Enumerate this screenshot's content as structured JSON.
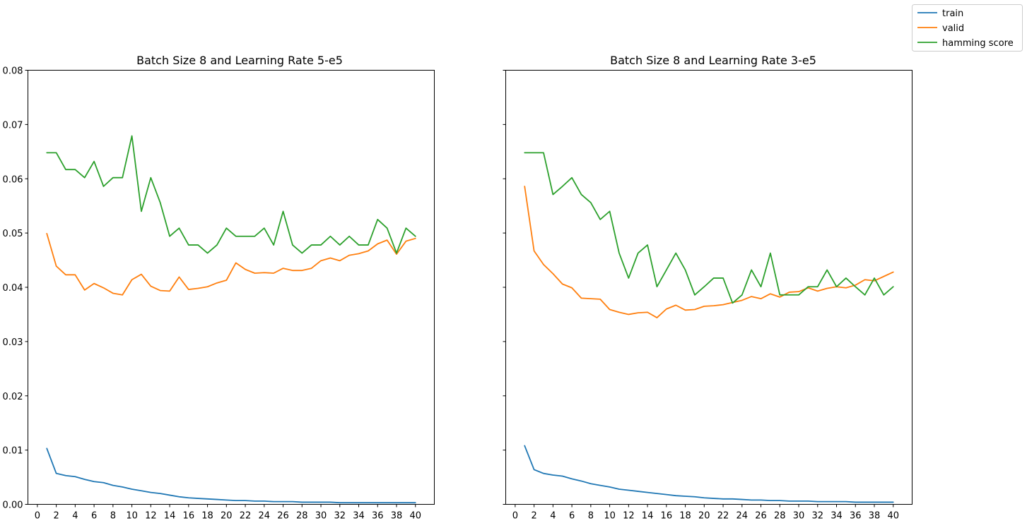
{
  "chart_data": [
    {
      "type": "line",
      "title": "Batch Size 8 and Learning Rate 5-e5",
      "xlabel": "",
      "ylabel": "",
      "xlim": [
        -1,
        42
      ],
      "ylim": [
        0.0,
        0.08
      ],
      "xticks": [
        0,
        2,
        4,
        6,
        8,
        10,
        12,
        14,
        16,
        18,
        20,
        22,
        24,
        26,
        28,
        30,
        32,
        34,
        36,
        38,
        40
      ],
      "yticks": [
        "0.00",
        "0.01",
        "0.02",
        "0.03",
        "0.04",
        "0.05",
        "0.06",
        "0.07",
        "0.08"
      ],
      "grid": false,
      "x": [
        1,
        2,
        3,
        4,
        5,
        6,
        7,
        8,
        9,
        10,
        11,
        12,
        13,
        14,
        15,
        16,
        17,
        18,
        19,
        20,
        21,
        22,
        23,
        24,
        25,
        26,
        27,
        28,
        29,
        30,
        31,
        32,
        33,
        34,
        35,
        36,
        37,
        38,
        39,
        40
      ],
      "series": [
        {
          "name": "train",
          "color": "#1f77b4",
          "values": [
            0.0103,
            0.0057,
            0.0053,
            0.0051,
            0.0046,
            0.0042,
            0.004,
            0.0035,
            0.0032,
            0.0028,
            0.0025,
            0.0022,
            0.002,
            0.0017,
            0.0014,
            0.0012,
            0.0011,
            0.001,
            0.0009,
            0.0008,
            0.0007,
            0.0007,
            0.0006,
            0.0006,
            0.0005,
            0.0005,
            0.0005,
            0.0004,
            0.0004,
            0.0004,
            0.0004,
            0.0003,
            0.0003,
            0.0003,
            0.0003,
            0.0003,
            0.0003,
            0.0003,
            0.0003,
            0.0003
          ]
        },
        {
          "name": "valid",
          "color": "#ff7f0e",
          "values": [
            0.0499,
            0.0439,
            0.0423,
            0.0423,
            0.0395,
            0.0407,
            0.0399,
            0.0389,
            0.0386,
            0.0414,
            0.0424,
            0.0402,
            0.0394,
            0.0393,
            0.0419,
            0.0396,
            0.0398,
            0.0401,
            0.0408,
            0.0413,
            0.0445,
            0.0433,
            0.0426,
            0.0427,
            0.0426,
            0.0435,
            0.0431,
            0.0431,
            0.0435,
            0.0449,
            0.0454,
            0.0449,
            0.0459,
            0.0462,
            0.0467,
            0.048,
            0.0487,
            0.0461,
            0.0485,
            0.049
          ]
        },
        {
          "name": "hamming score",
          "color": "#2ca02c",
          "values": [
            0.0648,
            0.0648,
            0.0617,
            0.0617,
            0.0602,
            0.0632,
            0.0586,
            0.0602,
            0.0602,
            0.0679,
            0.054,
            0.0602,
            0.0556,
            0.0494,
            0.0509,
            0.0478,
            0.0478,
            0.0463,
            0.0478,
            0.0509,
            0.0494,
            0.0494,
            0.0494,
            0.0509,
            0.0478,
            0.054,
            0.0478,
            0.0463,
            0.0478,
            0.0478,
            0.0494,
            0.0478,
            0.0494,
            0.0478,
            0.0478,
            0.0525,
            0.0509,
            0.0463,
            0.0509,
            0.0494
          ]
        }
      ]
    },
    {
      "type": "line",
      "title": "Batch Size 8 and Learning Rate 3-e5",
      "xlabel": "",
      "ylabel": "",
      "xlim": [
        -1,
        42
      ],
      "ylim": [
        0.0,
        0.08
      ],
      "xticks": [
        0,
        2,
        4,
        6,
        8,
        10,
        12,
        14,
        16,
        18,
        20,
        22,
        24,
        26,
        28,
        30,
        32,
        34,
        36,
        38,
        40
      ],
      "yticks": [],
      "grid": false,
      "x": [
        1,
        2,
        3,
        4,
        5,
        6,
        7,
        8,
        9,
        10,
        11,
        12,
        13,
        14,
        15,
        16,
        17,
        18,
        19,
        20,
        21,
        22,
        23,
        24,
        25,
        26,
        27,
        28,
        29,
        30,
        31,
        32,
        33,
        34,
        35,
        36,
        37,
        38,
        39,
        40
      ],
      "series": [
        {
          "name": "train",
          "color": "#1f77b4",
          "values": [
            0.0108,
            0.0064,
            0.0057,
            0.0054,
            0.0052,
            0.0047,
            0.0043,
            0.0038,
            0.0035,
            0.0032,
            0.0028,
            0.0026,
            0.0024,
            0.0022,
            0.002,
            0.0018,
            0.0016,
            0.0015,
            0.0014,
            0.0012,
            0.0011,
            0.001,
            0.001,
            0.0009,
            0.0008,
            0.0008,
            0.0007,
            0.0007,
            0.0006,
            0.0006,
            0.0006,
            0.0005,
            0.0005,
            0.0005,
            0.0005,
            0.0004,
            0.0004,
            0.0004,
            0.0004,
            0.0004
          ]
        },
        {
          "name": "valid",
          "color": "#ff7f0e",
          "values": [
            0.0586,
            0.0467,
            0.0442,
            0.0425,
            0.0406,
            0.0399,
            0.038,
            0.0379,
            0.0378,
            0.0359,
            0.0354,
            0.035,
            0.0353,
            0.0354,
            0.0344,
            0.036,
            0.0367,
            0.0358,
            0.0359,
            0.0365,
            0.0366,
            0.0368,
            0.0372,
            0.0376,
            0.0383,
            0.0379,
            0.0388,
            0.0382,
            0.0391,
            0.0392,
            0.0399,
            0.0393,
            0.0398,
            0.0401,
            0.0399,
            0.0404,
            0.0414,
            0.0412,
            0.042,
            0.0428
          ]
        },
        {
          "name": "hamming score",
          "color": "#2ca02c",
          "values": [
            0.0648,
            0.0648,
            0.0648,
            0.0571,
            0.0586,
            0.0602,
            0.0571,
            0.0556,
            0.0525,
            0.054,
            0.0463,
            0.0417,
            0.0463,
            0.0478,
            0.0401,
            0.0432,
            0.0463,
            0.0432,
            0.0386,
            0.0401,
            0.0417,
            0.0417,
            0.0371,
            0.0386,
            0.0432,
            0.0401,
            0.0463,
            0.0386,
            0.0386,
            0.0386,
            0.0401,
            0.0401,
            0.0432,
            0.0401,
            0.0417,
            0.0401,
            0.0386,
            0.0417,
            0.0386,
            0.0401
          ]
        }
      ]
    }
  ],
  "legend": {
    "placement": "top-right",
    "entries": [
      {
        "label": "train",
        "color": "#1f77b4"
      },
      {
        "label": "valid",
        "color": "#ff7f0e"
      },
      {
        "label": "hamming score",
        "color": "#2ca02c"
      }
    ]
  }
}
